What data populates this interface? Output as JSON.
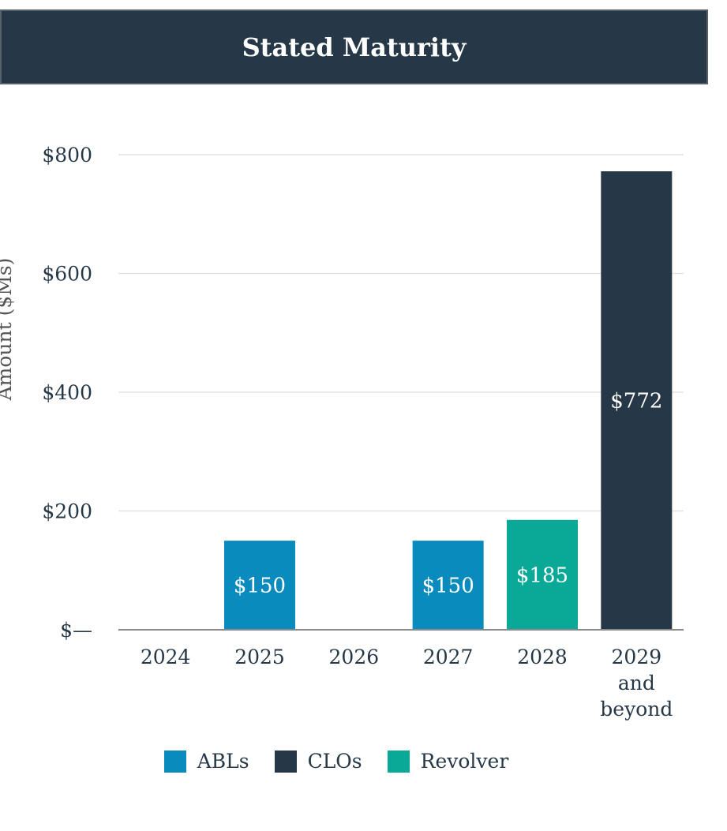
{
  "header": {
    "title": "Stated Maturity"
  },
  "colors": {
    "header_bg": "#263847",
    "ABLs": "#0a8bbd",
    "CLOs": "#263847",
    "Revolver": "#0aa897",
    "grid": "#e2e2e2",
    "axis_text": "#263847"
  },
  "chart_data": {
    "type": "bar",
    "title": "Stated Maturity",
    "xlabel": "",
    "ylabel": "Amount ($Ms)",
    "ylim": [
      0,
      800
    ],
    "yticks": [
      0,
      200,
      400,
      600,
      800
    ],
    "ytick_labels": [
      "$—",
      "$200",
      "$400",
      "$600",
      "$800"
    ],
    "grid": true,
    "legend_position": "bottom",
    "categories": [
      "2024",
      "2025",
      "2026",
      "2027",
      "2028",
      "2029 and beyond"
    ],
    "category_label_lines": [
      [
        "2024"
      ],
      [
        "2025"
      ],
      [
        "2026"
      ],
      [
        "2027"
      ],
      [
        "2028"
      ],
      [
        "2029",
        "and",
        "beyond"
      ]
    ],
    "series": [
      {
        "name": "ABLs",
        "color": "#0a8bbd",
        "values": [
          0,
          150,
          0,
          150,
          0,
          0
        ]
      },
      {
        "name": "CLOs",
        "color": "#263847",
        "values": [
          0,
          0,
          0,
          0,
          0,
          772
        ]
      },
      {
        "name": "Revolver",
        "color": "#0aa897",
        "values": [
          0,
          0,
          0,
          0,
          185,
          0
        ]
      }
    ],
    "data_labels": [
      "",
      "$150",
      "",
      "$150",
      "$185",
      "$772"
    ]
  }
}
